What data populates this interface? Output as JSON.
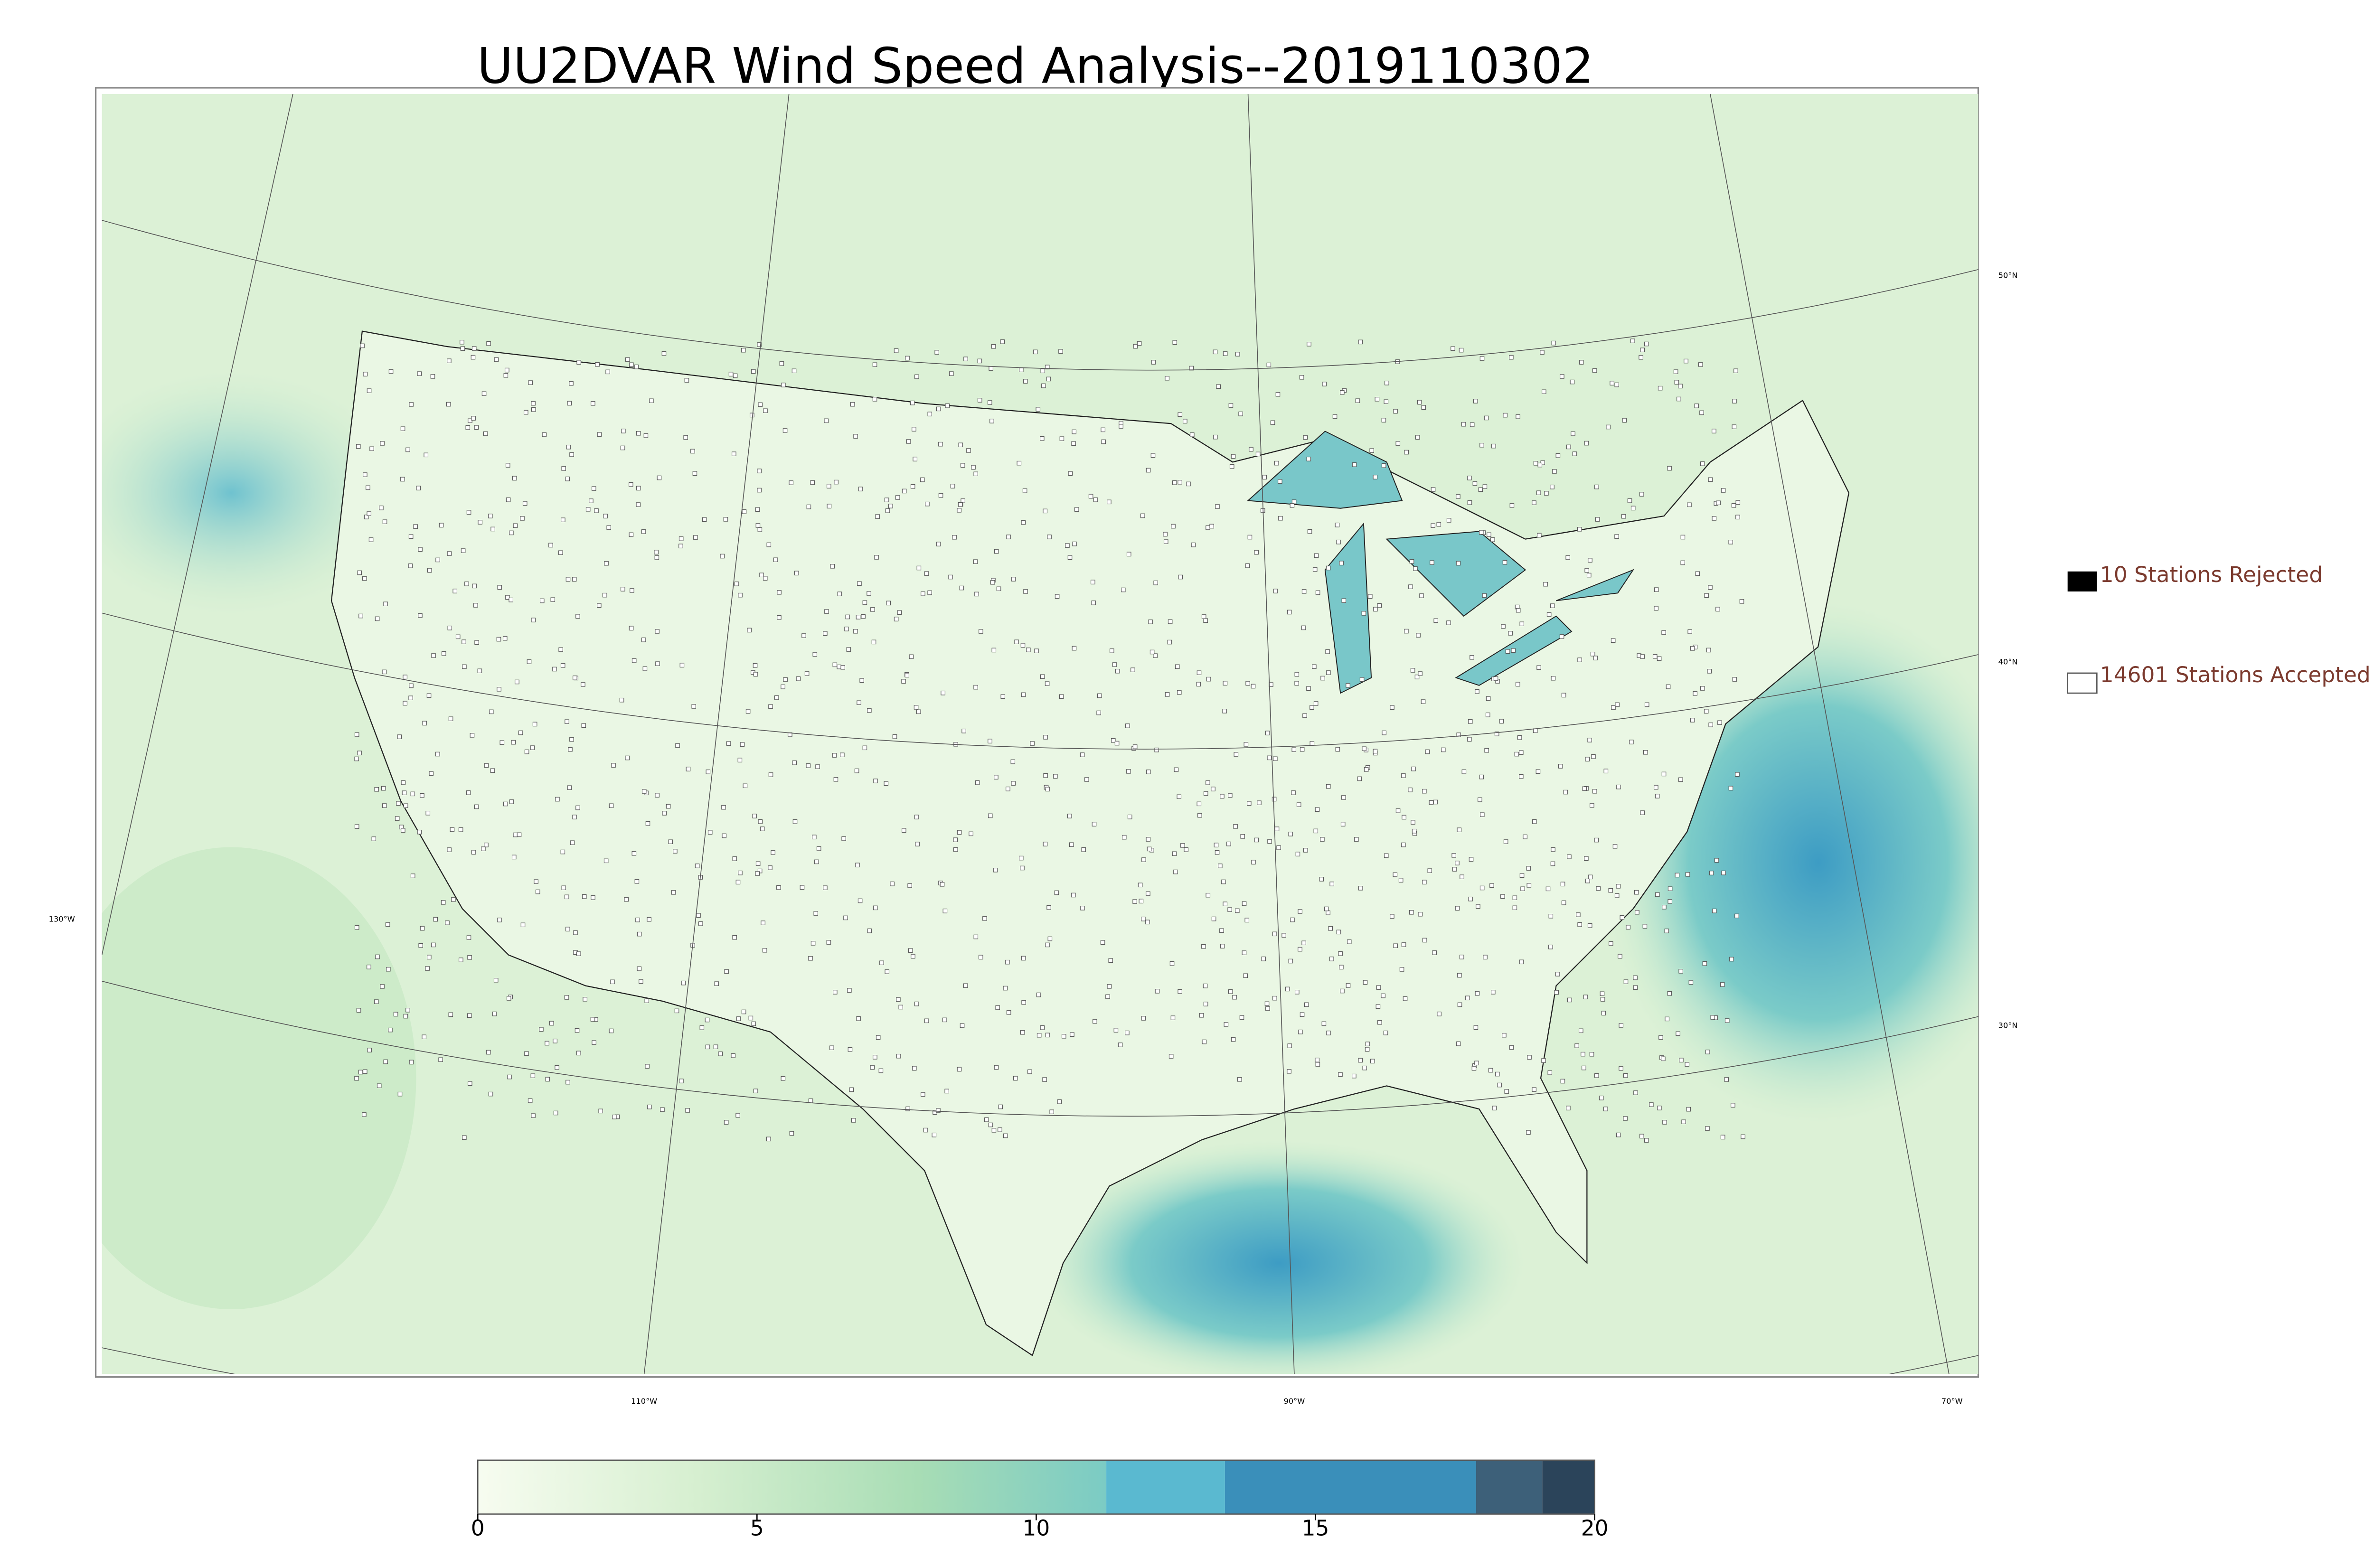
{
  "title": "UU2DVAR Wind Speed Analysis--2019110302",
  "map": {
    "lat_labels": [
      "50°N",
      "40°N",
      "30°N"
    ],
    "lon_labels": [
      "130°W",
      "110°W",
      "90°W",
      "70°W"
    ]
  },
  "legend": {
    "rejected": "10 Stations Rejected",
    "accepted": "14601 Stations Accepted"
  },
  "colorbar": {
    "lim": [
      0,
      20
    ],
    "ticks": [
      0,
      5,
      10,
      15,
      20
    ]
  }
}
